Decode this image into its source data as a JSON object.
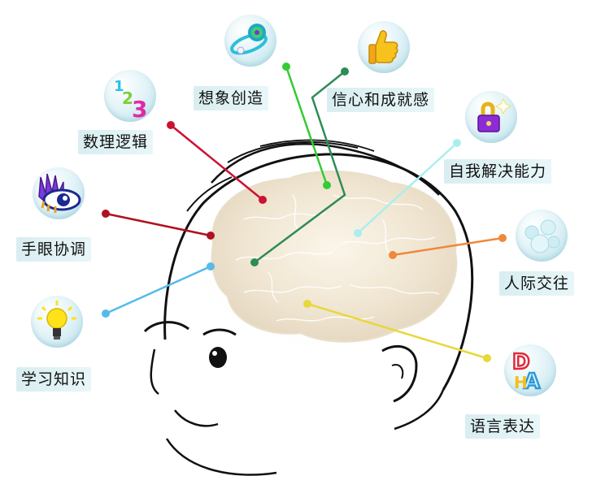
{
  "labels": {
    "imagination": "想象创造",
    "confidence": "信心和成就感",
    "logic": "数理逻辑",
    "self_solving": "自我解决能力",
    "hand_eye": "手眼协调",
    "social": "人际交往",
    "knowledge": "学习知识",
    "language": "语言表达"
  },
  "icons": {
    "imagination": "orbit-icon",
    "confidence": "thumbs-up-icon",
    "logic": "numbers-123-icon",
    "self_solving": "lock-icon",
    "hand_eye": "eye-hand-icon",
    "social": "bubbles-icon",
    "knowledge": "lightbulb-icon",
    "language": "letters-icon"
  },
  "colors": {
    "imagination": "#33cc33",
    "confidence": "#2e8b57",
    "logic": "#cc1133",
    "self_solving": "#aaeeee",
    "hand_eye": "#b01020",
    "social": "#f0883a",
    "knowledge": "#55bbe8",
    "language": "#e8d83a"
  }
}
